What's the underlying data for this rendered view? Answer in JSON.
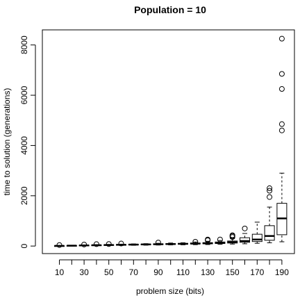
{
  "chart_data": {
    "type": "boxplot",
    "title": "Population = 10",
    "xlabel": "problem size (bits)",
    "ylabel": "time to solution (generations)",
    "ylim": [
      -300,
      8600
    ],
    "yticks": [
      0,
      2000,
      4000,
      6000,
      8000
    ],
    "categories": [
      10,
      20,
      30,
      40,
      50,
      60,
      70,
      80,
      90,
      100,
      110,
      120,
      130,
      140,
      150,
      160,
      170,
      180,
      190
    ],
    "xtick_labels_shown": [
      "10",
      "30",
      "50",
      "70",
      "90",
      "110",
      "130",
      "150",
      "170",
      "190"
    ],
    "boxes": [
      {
        "x": 10,
        "min": 0,
        "q1": 5,
        "median": 8,
        "q3": 12,
        "max": 20,
        "outliers": [
          40
        ]
      },
      {
        "x": 20,
        "min": 5,
        "q1": 12,
        "median": 16,
        "q3": 22,
        "max": 30,
        "outliers": []
      },
      {
        "x": 30,
        "min": 10,
        "q1": 20,
        "median": 26,
        "q3": 34,
        "max": 45,
        "outliers": [
          60
        ]
      },
      {
        "x": 40,
        "min": 15,
        "q1": 28,
        "median": 34,
        "q3": 42,
        "max": 55,
        "outliers": [
          75
        ]
      },
      {
        "x": 50,
        "min": 20,
        "q1": 35,
        "median": 42,
        "q3": 52,
        "max": 65,
        "outliers": [
          80
        ]
      },
      {
        "x": 60,
        "min": 25,
        "q1": 42,
        "median": 50,
        "q3": 60,
        "max": 75,
        "outliers": [
          100
        ]
      },
      {
        "x": 70,
        "min": 30,
        "q1": 50,
        "median": 58,
        "q3": 70,
        "max": 85,
        "outliers": []
      },
      {
        "x": 80,
        "min": 35,
        "q1": 55,
        "median": 65,
        "q3": 78,
        "max": 95,
        "outliers": []
      },
      {
        "x": 90,
        "min": 40,
        "q1": 62,
        "median": 72,
        "q3": 88,
        "max": 110,
        "outliers": [
          140
        ]
      },
      {
        "x": 100,
        "min": 45,
        "q1": 68,
        "median": 80,
        "q3": 95,
        "max": 120,
        "outliers": []
      },
      {
        "x": 110,
        "min": 50,
        "q1": 75,
        "median": 88,
        "q3": 105,
        "max": 130,
        "outliers": []
      },
      {
        "x": 120,
        "min": 55,
        "q1": 85,
        "median": 98,
        "q3": 120,
        "max": 160,
        "outliers": [
          170
        ]
      },
      {
        "x": 130,
        "min": 60,
        "q1": 90,
        "median": 110,
        "q3": 135,
        "max": 190,
        "outliers": [
          230,
          260
        ]
      },
      {
        "x": 140,
        "min": 70,
        "q1": 100,
        "median": 125,
        "q3": 160,
        "max": 220,
        "outliers": [
          260
        ]
      },
      {
        "x": 150,
        "min": 80,
        "q1": 120,
        "median": 150,
        "q3": 200,
        "max": 300,
        "outliers": [
          360,
          400,
          430
        ]
      },
      {
        "x": 160,
        "min": 90,
        "q1": 150,
        "median": 200,
        "q3": 330,
        "max": 500,
        "outliers": [
          700
        ]
      },
      {
        "x": 170,
        "min": 110,
        "q1": 180,
        "median": 260,
        "q3": 470,
        "max": 950,
        "outliers": []
      },
      {
        "x": 180,
        "min": 130,
        "q1": 230,
        "median": 400,
        "q3": 810,
        "max": 1550,
        "outliers": [
          1950,
          2200,
          2300
        ]
      },
      {
        "x": 190,
        "min": 170,
        "q1": 450,
        "median": 1100,
        "q3": 1700,
        "max": 2900,
        "outliers": [
          4600,
          4850,
          6250,
          6850,
          8250
        ]
      }
    ]
  }
}
